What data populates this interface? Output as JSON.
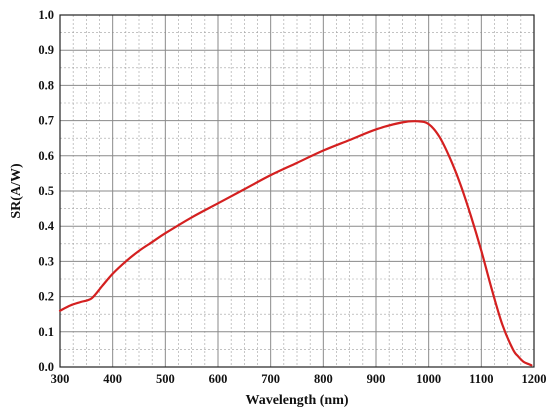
{
  "chart_data": {
    "type": "line",
    "title": "",
    "xlabel": "Wavelength (nm)",
    "ylabel": "SR(A/W)",
    "xlim": [
      300,
      1200
    ],
    "ylim": [
      0.0,
      1.0
    ],
    "x_ticks": [
      300,
      400,
      500,
      600,
      700,
      800,
      900,
      1000,
      1100,
      1200
    ],
    "x_tick_labels": [
      "300",
      "400",
      "500",
      "600",
      "700",
      "800",
      "900",
      "1000",
      "1100",
      "1200"
    ],
    "y_ticks": [
      0.0,
      0.1,
      0.2,
      0.3,
      0.4,
      0.5,
      0.6,
      0.7,
      0.8,
      0.9,
      1.0
    ],
    "y_tick_labels": [
      "0.0",
      "0.1",
      "0.2",
      "0.3",
      "0.4",
      "0.5",
      "0.6",
      "0.7",
      "0.8",
      "0.9",
      "1.0"
    ],
    "grid": true,
    "legend": "none",
    "series": [
      {
        "color": "#d42020",
        "x": [
          300,
          320,
          340,
          360,
          380,
          400,
          425,
          450,
          475,
          500,
          550,
          600,
          650,
          700,
          750,
          800,
          850,
          900,
          950,
          980,
          1000,
          1020,
          1040,
          1060,
          1080,
          1100,
          1120,
          1140,
          1160,
          1170,
          1180,
          1190,
          1195
        ],
        "y": [
          0.16,
          0.175,
          0.185,
          0.195,
          0.23,
          0.265,
          0.3,
          0.33,
          0.355,
          0.38,
          0.425,
          0.465,
          0.505,
          0.545,
          0.58,
          0.615,
          0.645,
          0.675,
          0.695,
          0.698,
          0.69,
          0.655,
          0.595,
          0.52,
          0.43,
          0.33,
          0.22,
          0.12,
          0.05,
          0.03,
          0.015,
          0.008,
          0.005
        ]
      }
    ]
  }
}
